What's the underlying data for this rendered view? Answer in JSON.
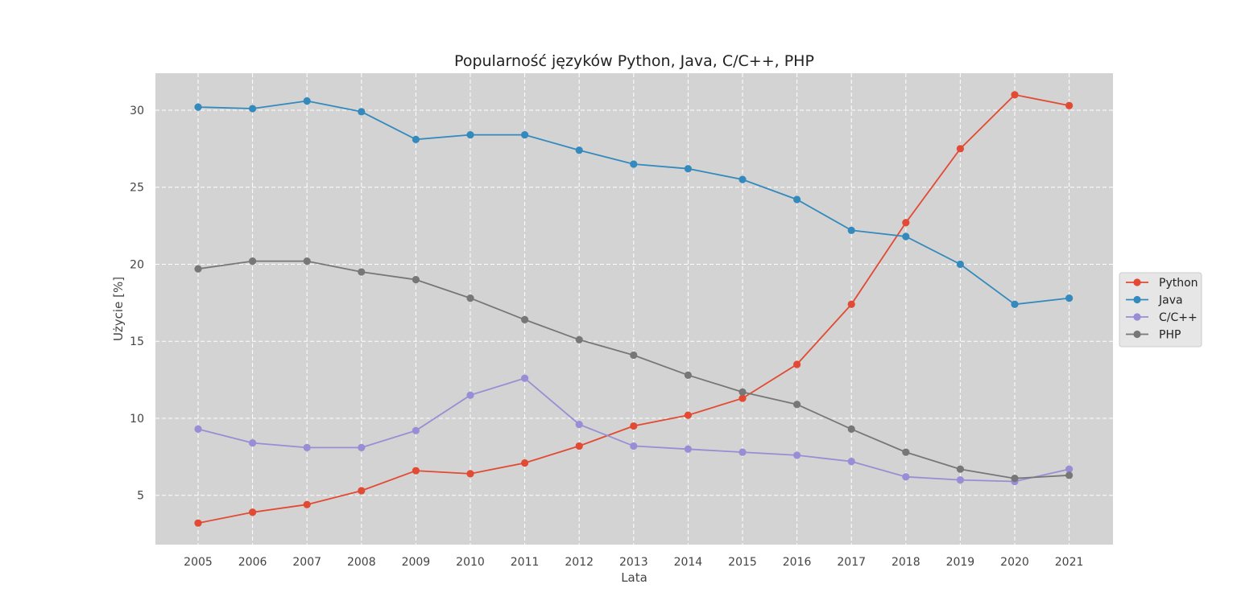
{
  "chart_data": {
    "type": "line",
    "title": "Popularność języków Python, Java, C/C++, PHP",
    "xlabel": "Lata",
    "ylabel": "Użycie [%]",
    "x": [
      2005,
      2006,
      2007,
      2008,
      2009,
      2010,
      2011,
      2012,
      2013,
      2014,
      2015,
      2016,
      2017,
      2018,
      2019,
      2020,
      2021
    ],
    "yticks": [
      5,
      10,
      15,
      20,
      25,
      30
    ],
    "ylim": [
      1.8,
      32.4
    ],
    "grid": true,
    "legend_position": "right",
    "series": [
      {
        "name": "Python",
        "color": "#e24a33",
        "values": [
          3.2,
          3.9,
          4.4,
          5.3,
          6.6,
          6.4,
          7.1,
          8.2,
          9.5,
          10.2,
          11.3,
          13.5,
          17.4,
          22.7,
          27.5,
          31.0,
          30.3
        ]
      },
      {
        "name": "Java",
        "color": "#348abd",
        "values": [
          30.2,
          30.1,
          30.6,
          29.9,
          28.1,
          28.4,
          28.4,
          27.4,
          26.5,
          26.2,
          25.5,
          24.2,
          22.2,
          21.8,
          20.0,
          17.4,
          17.8
        ]
      },
      {
        "name": "C/C++",
        "color": "#988ed5",
        "values": [
          9.3,
          8.4,
          8.1,
          8.1,
          9.2,
          11.5,
          12.6,
          9.6,
          8.2,
          8.0,
          7.8,
          7.6,
          7.2,
          6.2,
          6.0,
          5.9,
          6.7
        ]
      },
      {
        "name": "PHP",
        "color": "#777777",
        "values": [
          19.7,
          20.2,
          20.2,
          19.5,
          19.0,
          17.8,
          16.4,
          15.1,
          14.1,
          12.8,
          11.7,
          10.9,
          9.3,
          7.8,
          6.7,
          6.1,
          6.3
        ]
      }
    ]
  }
}
